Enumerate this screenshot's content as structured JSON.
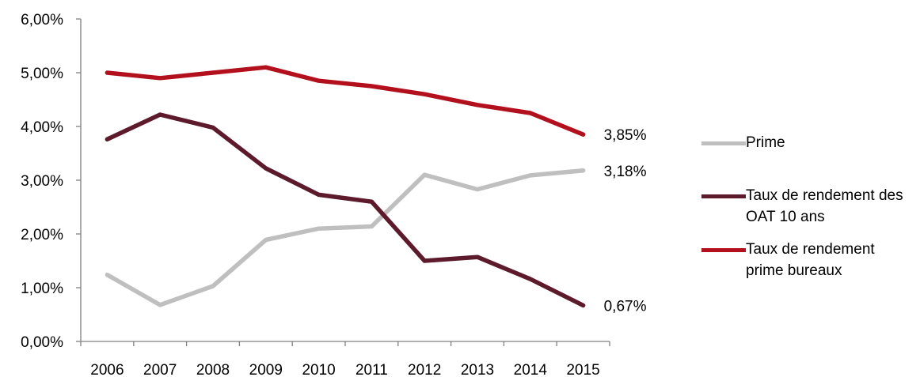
{
  "chart_data": {
    "type": "line",
    "title": "",
    "xlabel": "",
    "ylabel": "",
    "x": [
      "2006",
      "2007",
      "2008",
      "2009",
      "2010",
      "2011",
      "2012",
      "2013",
      "2014",
      "2015"
    ],
    "ylim": [
      0,
      0.06
    ],
    "y_ticks": [
      "0,00%",
      "1,00%",
      "2,00%",
      "3,00%",
      "4,00%",
      "5,00%",
      "6,00%"
    ],
    "grid": false,
    "legend_position": "right",
    "series": [
      {
        "name": "Prime",
        "color": "#bfbfbf",
        "values": [
          0.0124,
          0.0068,
          0.0103,
          0.0189,
          0.021,
          0.0214,
          0.031,
          0.0283,
          0.0309,
          0.0318
        ],
        "end_label": "3,18%"
      },
      {
        "name": "Taux de rendement des OAT 10 ans",
        "color": "#5c1a2b",
        "values": [
          0.0376,
          0.0422,
          0.0398,
          0.0322,
          0.0273,
          0.026,
          0.015,
          0.0157,
          0.0116,
          0.0067
        ],
        "end_label": "0,67%"
      },
      {
        "name": "Taux de rendement prime bureaux",
        "color": "#b3101e",
        "values": [
          0.05,
          0.049,
          0.05,
          0.051,
          0.0485,
          0.0475,
          0.046,
          0.044,
          0.0425,
          0.0385
        ],
        "end_label": "3,85%"
      }
    ]
  }
}
